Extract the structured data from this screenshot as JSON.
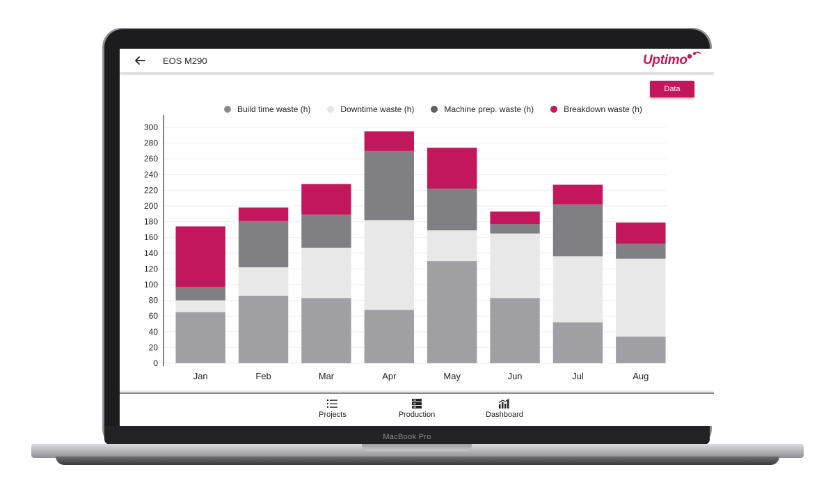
{
  "device": {
    "label": "MacBook Pro"
  },
  "header": {
    "back_icon": "arrow-left-icon",
    "title": "EOS M290",
    "brand": "Uptimo",
    "brand_color": "#c2185b"
  },
  "toolbar": {
    "data_button_label": "Data"
  },
  "legend": [
    {
      "label": "Build time waste (h)",
      "color": "#8a8a8e"
    },
    {
      "label": "Downtime waste (h)",
      "color": "#e6e6e6"
    },
    {
      "label": "Machine prep. waste (h)",
      "color": "#606063"
    },
    {
      "label": "Breakdown waste (h)",
      "color": "#c2185b"
    }
  ],
  "nav": [
    {
      "label": "Projects",
      "icon": "list-icon"
    },
    {
      "label": "Production",
      "icon": "server-icon"
    },
    {
      "label": "Dashboard",
      "icon": "bar-chart-icon"
    }
  ],
  "chart_data": {
    "type": "bar",
    "stacked": true,
    "categories": [
      "Jan",
      "Feb",
      "Mar",
      "Apr",
      "May",
      "Jun",
      "Jul",
      "Aug"
    ],
    "series": [
      {
        "name": "Build time waste (h)",
        "color": "#a0a0a4",
        "values": [
          65,
          86,
          83,
          68,
          130,
          83,
          52,
          34
        ]
      },
      {
        "name": "Downtime waste (h)",
        "color": "#e8e8e8",
        "values": [
          15,
          36,
          64,
          114,
          39,
          82,
          84,
          99
        ]
      },
      {
        "name": "Machine prep. waste (h)",
        "color": "#808084",
        "values": [
          17,
          59,
          42,
          88,
          53,
          12,
          66,
          19
        ]
      },
      {
        "name": "Breakdown waste (h)",
        "color": "#c2185b",
        "values": [
          77,
          17,
          39,
          25,
          52,
          16,
          25,
          27
        ]
      }
    ],
    "yticks": [
      0,
      20,
      40,
      60,
      80,
      100,
      120,
      140,
      160,
      180,
      200,
      220,
      240,
      260,
      280,
      300
    ],
    "ylim": [
      0,
      300
    ],
    "grid": true
  }
}
